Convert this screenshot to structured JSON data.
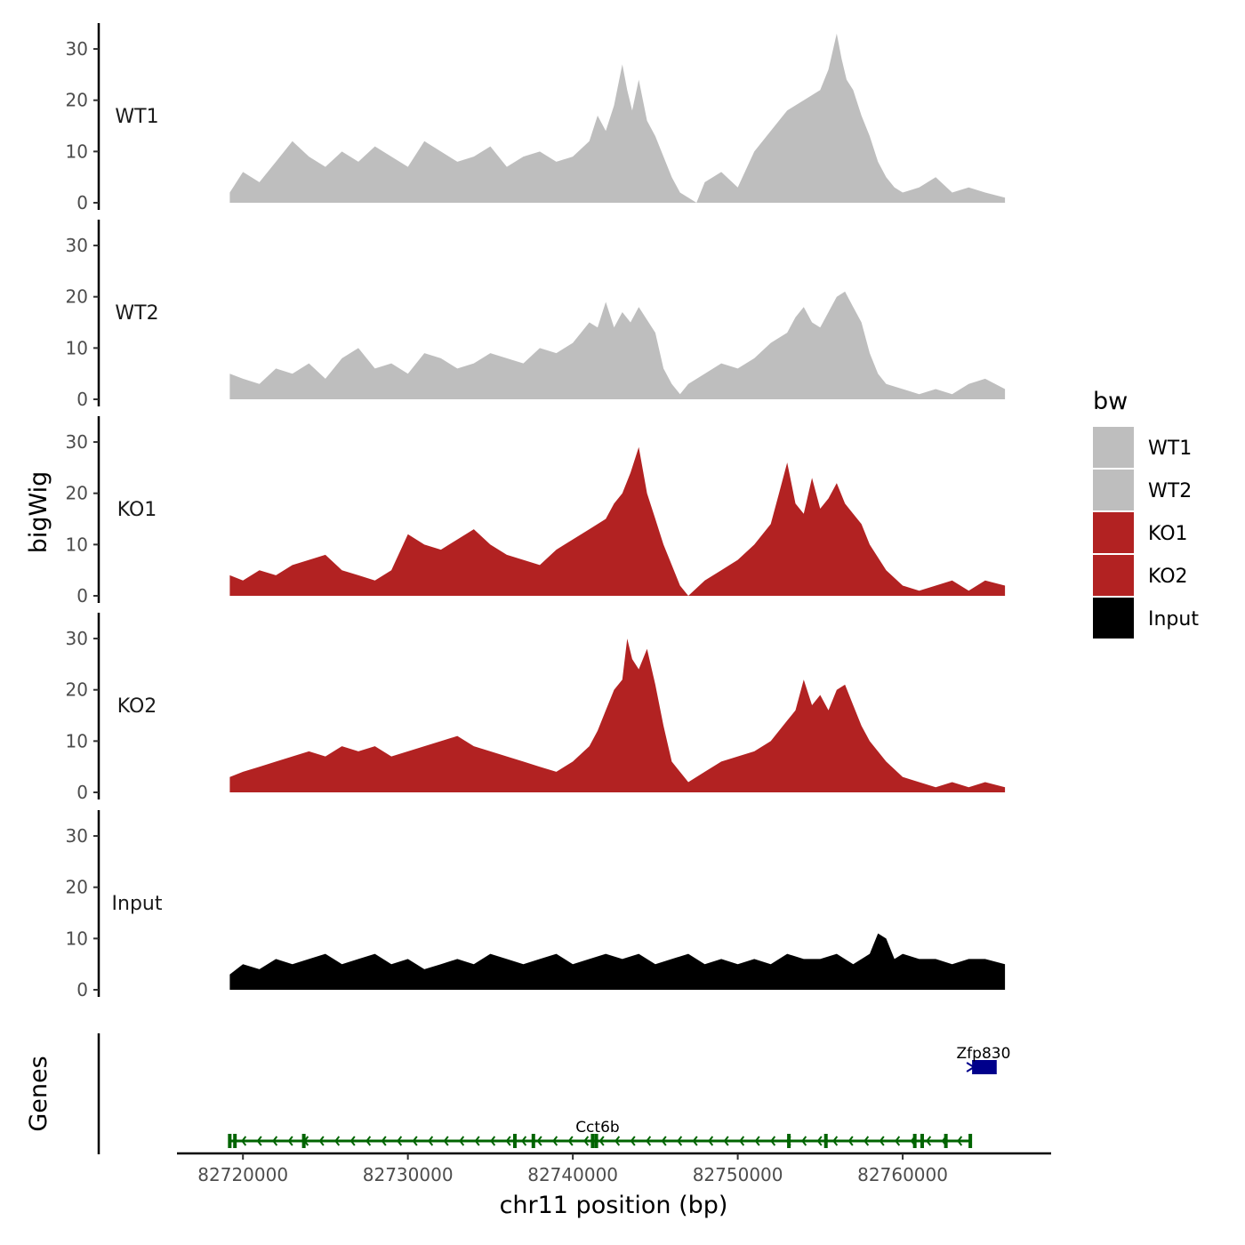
{
  "chart_data": {
    "type": "area",
    "ylabel": "bigWig",
    "xlabel": "chr11 position (bp)",
    "xlim": [
      82716000,
      82769000
    ],
    "ylim": [
      0,
      34
    ],
    "y_ticks": [
      0,
      10,
      20,
      30
    ],
    "x_ticks": [
      82720000,
      82730000,
      82740000,
      82750000,
      82760000
    ],
    "x_tick_labels": [
      "82720000",
      "82730000",
      "82740000",
      "82750000",
      "82760000"
    ],
    "genes_panel_label": "Genes",
    "legend": {
      "title": "bw",
      "items": [
        {
          "label": "WT1",
          "color": "#bebebe"
        },
        {
          "label": "WT2",
          "color": "#bebebe"
        },
        {
          "label": "KO1",
          "color": "#b22222"
        },
        {
          "label": "KO2",
          "color": "#b22222"
        },
        {
          "label": "Input",
          "color": "#000000"
        }
      ]
    },
    "series": [
      {
        "name": "WT1",
        "color": "#bebebe",
        "x": [
          82719200,
          82720000,
          82721000,
          82722000,
          82723000,
          82724000,
          82725000,
          82726000,
          82727000,
          82728000,
          82729000,
          82730000,
          82731000,
          82732000,
          82733000,
          82734000,
          82735000,
          82736000,
          82737000,
          82738000,
          82739000,
          82740000,
          82741000,
          82741500,
          82742000,
          82742500,
          82743000,
          82743300,
          82743600,
          82744000,
          82744500,
          82745000,
          82745500,
          82746000,
          82746500,
          82747000,
          82747500,
          82748000,
          82749000,
          82750000,
          82751000,
          82752000,
          82753000,
          82754000,
          82755000,
          82755500,
          82756000,
          82756300,
          82756600,
          82757000,
          82757500,
          82758000,
          82758500,
          82759000,
          82759500,
          82760000,
          82761000,
          82762000,
          82763000,
          82764000,
          82765000,
          82766200
        ],
        "y": [
          2,
          6,
          4,
          8,
          12,
          9,
          7,
          10,
          8,
          11,
          9,
          7,
          12,
          10,
          8,
          9,
          11,
          7,
          9,
          10,
          8,
          9,
          12,
          17,
          14,
          19,
          27,
          22,
          18,
          24,
          16,
          13,
          9,
          5,
          2,
          1,
          0,
          4,
          6,
          3,
          10,
          14,
          18,
          20,
          22,
          26,
          33,
          28,
          24,
          22,
          17,
          13,
          8,
          5,
          3,
          2,
          3,
          5,
          2,
          3,
          2,
          1
        ]
      },
      {
        "name": "WT2",
        "color": "#bebebe",
        "x": [
          82719200,
          82720000,
          82721000,
          82722000,
          82723000,
          82724000,
          82725000,
          82726000,
          82727000,
          82728000,
          82729000,
          82730000,
          82731000,
          82732000,
          82733000,
          82734000,
          82735000,
          82736000,
          82737000,
          82738000,
          82739000,
          82740000,
          82740500,
          82741000,
          82741500,
          82742000,
          82742500,
          82743000,
          82743500,
          82744000,
          82745000,
          82745500,
          82746000,
          82746500,
          82747000,
          82748000,
          82749000,
          82750000,
          82751000,
          82752000,
          82753000,
          82753500,
          82754000,
          82754500,
          82755000,
          82755500,
          82756000,
          82756500,
          82757000,
          82757500,
          82758000,
          82758500,
          82759000,
          82760000,
          82761000,
          82762000,
          82763000,
          82764000,
          82765000,
          82766200
        ],
        "y": [
          5,
          4,
          3,
          6,
          5,
          7,
          4,
          8,
          10,
          6,
          7,
          5,
          9,
          8,
          6,
          7,
          9,
          8,
          7,
          10,
          9,
          11,
          13,
          15,
          14,
          19,
          14,
          17,
          15,
          18,
          13,
          6,
          3,
          1,
          3,
          5,
          7,
          6,
          8,
          11,
          13,
          16,
          18,
          15,
          14,
          17,
          20,
          21,
          18,
          15,
          9,
          5,
          3,
          2,
          1,
          2,
          1,
          3,
          4,
          2
        ]
      },
      {
        "name": "KO1",
        "color": "#b22222",
        "x": [
          82719200,
          82720000,
          82721000,
          82722000,
          82723000,
          82724000,
          82725000,
          82726000,
          82727000,
          82728000,
          82729000,
          82730000,
          82731000,
          82732000,
          82733000,
          82734000,
          82735000,
          82736000,
          82737000,
          82738000,
          82739000,
          82740000,
          82741000,
          82742000,
          82742500,
          82743000,
          82743500,
          82744000,
          82744500,
          82745000,
          82745500,
          82746000,
          82746500,
          82747000,
          82748000,
          82749000,
          82750000,
          82751000,
          82752000,
          82752500,
          82753000,
          82753500,
          82754000,
          82754500,
          82755000,
          82755500,
          82756000,
          82756500,
          82757000,
          82757500,
          82758000,
          82759000,
          82760000,
          82761000,
          82762000,
          82763000,
          82764000,
          82765000,
          82766200
        ],
        "y": [
          4,
          3,
          5,
          4,
          6,
          7,
          8,
          5,
          4,
          3,
          5,
          12,
          10,
          9,
          11,
          13,
          10,
          8,
          7,
          6,
          9,
          11,
          13,
          15,
          18,
          20,
          24,
          29,
          20,
          15,
          10,
          6,
          2,
          0,
          3,
          5,
          7,
          10,
          14,
          20,
          26,
          18,
          16,
          23,
          17,
          19,
          22,
          18,
          16,
          14,
          10,
          5,
          2,
          1,
          2,
          3,
          1,
          3,
          2
        ]
      },
      {
        "name": "KO2",
        "color": "#b22222",
        "x": [
          82719200,
          82720000,
          82721000,
          82722000,
          82723000,
          82724000,
          82725000,
          82726000,
          82727000,
          82728000,
          82729000,
          82730000,
          82731000,
          82732000,
          82733000,
          82734000,
          82735000,
          82736000,
          82737000,
          82738000,
          82739000,
          82740000,
          82741000,
          82741500,
          82742000,
          82742500,
          82743000,
          82743300,
          82743600,
          82744000,
          82744500,
          82745000,
          82745500,
          82746000,
          82747000,
          82748000,
          82749000,
          82750000,
          82751000,
          82752000,
          82753000,
          82753500,
          82754000,
          82754500,
          82755000,
          82755500,
          82756000,
          82756500,
          82757000,
          82757500,
          82758000,
          82759000,
          82760000,
          82761000,
          82762000,
          82763000,
          82764000,
          82765000,
          82766200
        ],
        "y": [
          3,
          4,
          5,
          6,
          7,
          8,
          7,
          9,
          8,
          9,
          7,
          8,
          9,
          10,
          11,
          9,
          8,
          7,
          6,
          5,
          4,
          6,
          9,
          12,
          16,
          20,
          22,
          30,
          26,
          24,
          28,
          21,
          13,
          6,
          2,
          4,
          6,
          7,
          8,
          10,
          14,
          16,
          22,
          17,
          19,
          16,
          20,
          21,
          17,
          13,
          10,
          6,
          3,
          2,
          1,
          2,
          1,
          2,
          1
        ]
      },
      {
        "name": "Input",
        "color": "#000000",
        "x": [
          82719200,
          82720000,
          82721000,
          82722000,
          82723000,
          82724000,
          82725000,
          82726000,
          82727000,
          82728000,
          82729000,
          82730000,
          82731000,
          82732000,
          82733000,
          82734000,
          82735000,
          82736000,
          82737000,
          82738000,
          82739000,
          82740000,
          82741000,
          82742000,
          82743000,
          82744000,
          82745000,
          82746000,
          82747000,
          82748000,
          82749000,
          82750000,
          82751000,
          82752000,
          82753000,
          82754000,
          82755000,
          82756000,
          82757000,
          82758000,
          82758500,
          82759000,
          82759500,
          82760000,
          82761000,
          82762000,
          82763000,
          82764000,
          82765000,
          82766200
        ],
        "y": [
          3,
          5,
          4,
          6,
          5,
          6,
          7,
          5,
          6,
          7,
          5,
          6,
          4,
          5,
          6,
          5,
          7,
          6,
          5,
          6,
          7,
          5,
          6,
          7,
          6,
          7,
          5,
          6,
          7,
          5,
          6,
          5,
          6,
          5,
          7,
          6,
          6,
          7,
          5,
          7,
          11,
          10,
          6,
          7,
          6,
          6,
          5,
          6,
          6,
          5
        ]
      }
    ],
    "genes": [
      {
        "name": "Cct6b",
        "start": 82719200,
        "end": 82764100,
        "strand": "-",
        "color": "#006400"
      },
      {
        "name": "Zfp830",
        "start": 82764100,
        "end": 82765700,
        "strand": "+",
        "color": "#00008b"
      }
    ]
  }
}
